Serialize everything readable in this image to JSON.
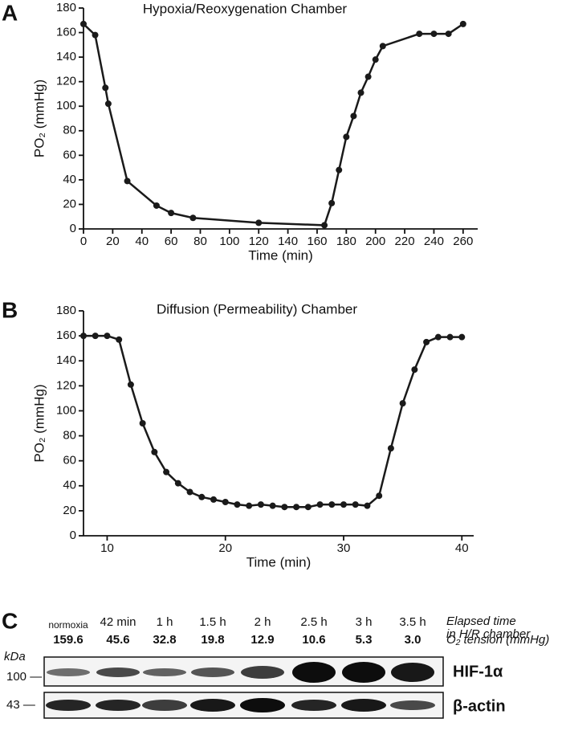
{
  "chart_data": [
    {
      "type": "line",
      "panel_label": "A",
      "title": "Hypoxia/Reoxygenation Chamber",
      "x_label": "Time (min)",
      "y_label": "PO₂ (mmHg)",
      "x": [
        0,
        8,
        15,
        17,
        30,
        50,
        60,
        75,
        120,
        165,
        170,
        175,
        180,
        185,
        190,
        195,
        200,
        205,
        230,
        240,
        250,
        260
      ],
      "series": [
        {
          "color": "#1a1a1a",
          "values": [
            167,
            158,
            115,
            102,
            39,
            19,
            13,
            9,
            5,
            3,
            21,
            48,
            75,
            92,
            111,
            124,
            138,
            149,
            159,
            159,
            159,
            167
          ]
        }
      ],
      "xlim": [
        0,
        270
      ],
      "ylim": [
        0,
        180
      ],
      "xticks": [
        0,
        20,
        40,
        60,
        80,
        100,
        120,
        140,
        160,
        180,
        200,
        220,
        240,
        260
      ],
      "yticks": [
        0,
        20,
        40,
        60,
        80,
        100,
        120,
        140,
        160,
        180
      ]
    },
    {
      "type": "line",
      "panel_label": "B",
      "title": "Diffusion (Permeability) Chamber",
      "x_label": "Time (min)",
      "y_label": "PO₂ (mmHg)",
      "x": [
        8,
        9,
        10,
        11,
        12,
        13,
        14,
        15,
        16,
        17,
        18,
        19,
        20,
        21,
        22,
        23,
        24,
        25,
        26,
        27,
        28,
        29,
        30,
        31,
        32,
        33,
        34,
        35,
        36,
        37,
        38,
        39,
        40
      ],
      "series": [
        {
          "color": "#1a1a1a",
          "values": [
            160,
            160,
            160,
            157,
            121,
            90,
            67,
            51,
            42,
            35,
            31,
            29,
            27,
            25,
            24,
            25,
            24,
            23,
            23,
            23,
            25,
            25,
            25,
            25,
            24,
            32,
            70,
            106,
            133,
            155,
            159,
            159,
            159
          ]
        }
      ],
      "xlim": [
        8,
        41
      ],
      "ylim": [
        0,
        180
      ],
      "xticks": [
        10,
        20,
        30,
        40
      ],
      "yticks": [
        0,
        20,
        40,
        60,
        80,
        100,
        120,
        140,
        160,
        180
      ]
    }
  ],
  "blot": {
    "panel_label": "C",
    "columns": [
      "normoxia",
      "42 min",
      "1 h",
      "1.5 h",
      "2 h",
      "2.5 h",
      "3 h",
      "3.5 h"
    ],
    "tensions": [
      "159.6",
      "45.6",
      "32.8",
      "19.8",
      "12.9",
      "10.6",
      "5.3",
      "3.0"
    ],
    "elapsed_label": [
      "Elapsed time",
      "in H/R chamber"
    ],
    "tension_label": "O₂ tension (mmHg)",
    "kda_label": "kDa",
    "markers": [
      "100 —",
      "43 —"
    ],
    "bands": [
      "HIF-1α",
      "β-actin"
    ]
  }
}
